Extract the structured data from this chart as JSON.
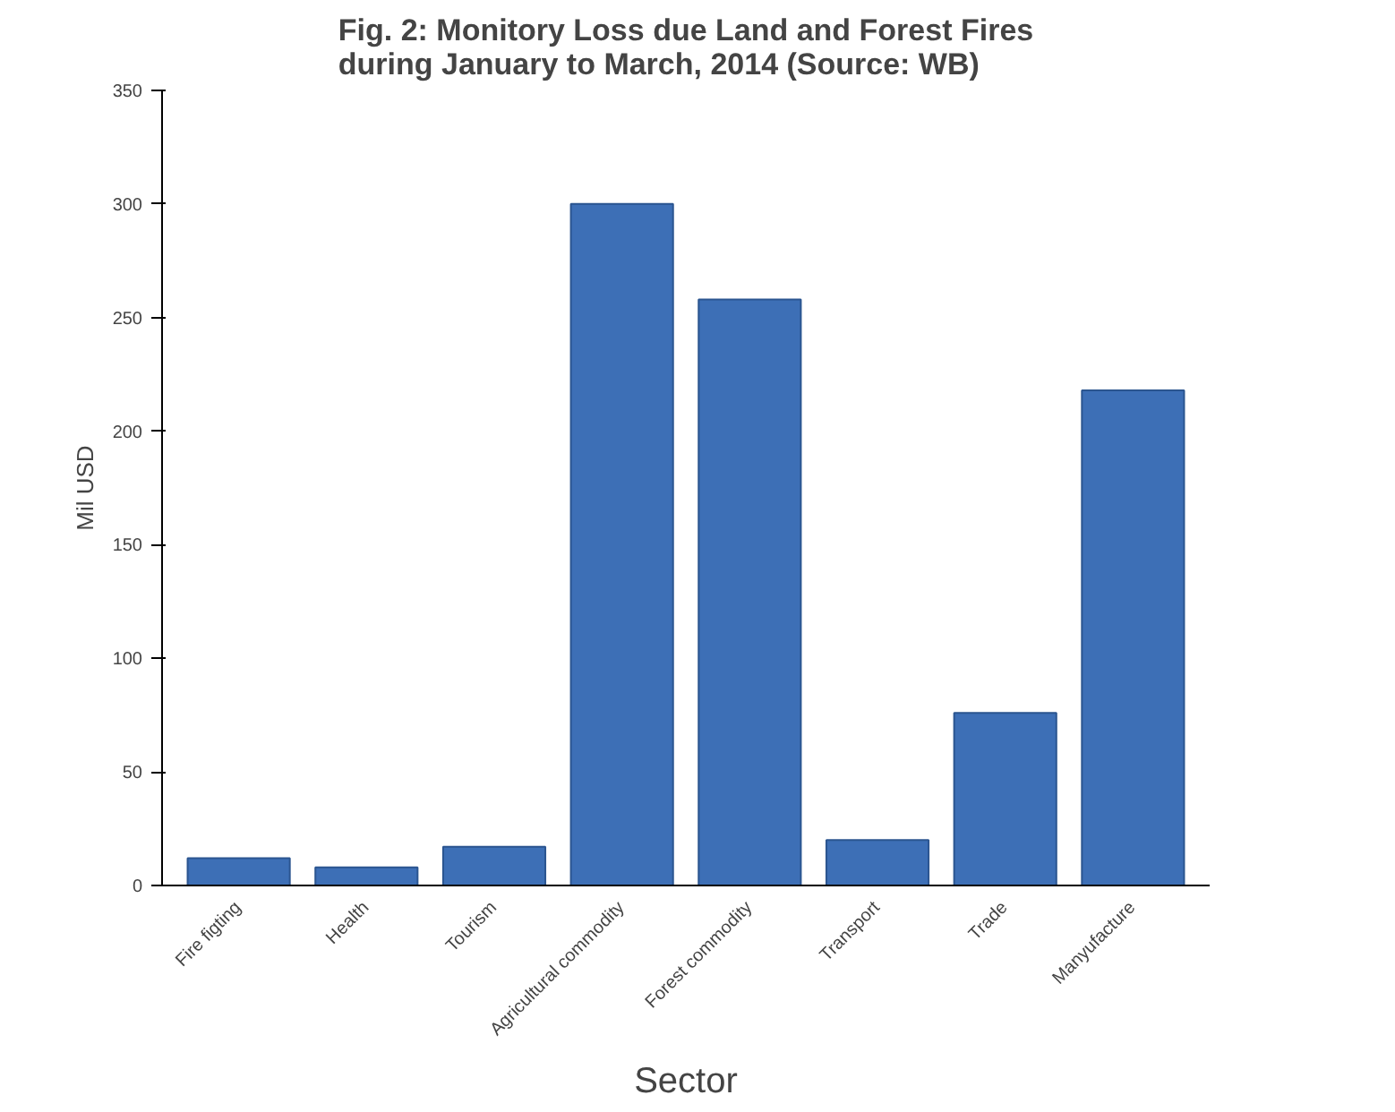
{
  "chart_data": {
    "type": "bar",
    "title": "Fig. 2: Monitory Loss due Land and Forest Fires\nduring January to March, 2014 (Source: WB)",
    "xlabel": "Sector",
    "ylabel": "Mil USD",
    "categories": [
      "Fire figting",
      "Health",
      "Tourism",
      "Agricultural commodity",
      "Forest commodity",
      "Transport",
      "Trade",
      "Manyufacture"
    ],
    "values": [
      12,
      8,
      17,
      300,
      258,
      20,
      76,
      218
    ],
    "color": "#3d6fb6",
    "ylim": [
      0,
      350
    ],
    "yticks": [
      0,
      50,
      100,
      150,
      200,
      250,
      300,
      350
    ],
    "grid": false
  }
}
